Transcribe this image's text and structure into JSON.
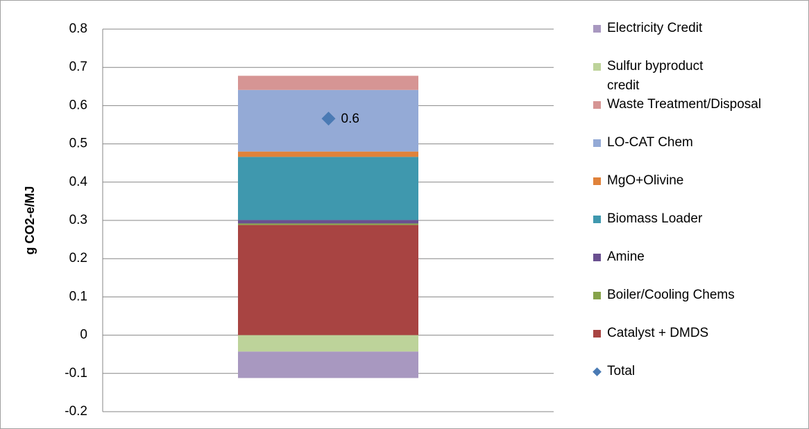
{
  "chart_data": {
    "type": "bar",
    "stacked": true,
    "y_axis_label": "g CO2-e/MJ",
    "categories": [
      null
    ],
    "ylim": [
      -0.2,
      0.8
    ],
    "yticks": [
      -0.2,
      -0.1,
      0,
      0.1,
      0.2,
      0.3,
      0.4,
      0.5,
      0.6,
      0.7,
      0.8
    ],
    "grid": true,
    "legend": "right",
    "series": [
      {
        "name": "Catalyst + DMDS",
        "color": "#a84442",
        "values": [
          0.288
        ]
      },
      {
        "name": "Boiler/Cooling Chems",
        "color": "#86a34a",
        "values": [
          0.004
        ]
      },
      {
        "name": "Amine",
        "color": "#6a5090",
        "values": [
          0.009
        ]
      },
      {
        "name": "Biomass Loader",
        "color": "#3f98ae",
        "values": [
          0.165
        ]
      },
      {
        "name": "MgO+Olivine",
        "color": "#e0823a",
        "values": [
          0.014
        ]
      },
      {
        "name": "LO-CAT Chem",
        "color": "#94aad6",
        "values": [
          0.161
        ]
      },
      {
        "name": "Waste Treatment/Disposal",
        "color": "#d69594",
        "values": [
          0.037
        ]
      },
      {
        "name": "Sulfur byproduct credit",
        "color": "#bdd39a",
        "values": [
          -0.043
        ]
      },
      {
        "name": "Electricity Credit",
        "color": "#a898c0",
        "values": [
          -0.069
        ]
      },
      {
        "name": "Total",
        "color": "#4a7ab4",
        "marker": "diamond",
        "values": [
          0.566
        ],
        "value_labels": [
          "0.6"
        ]
      }
    ]
  }
}
